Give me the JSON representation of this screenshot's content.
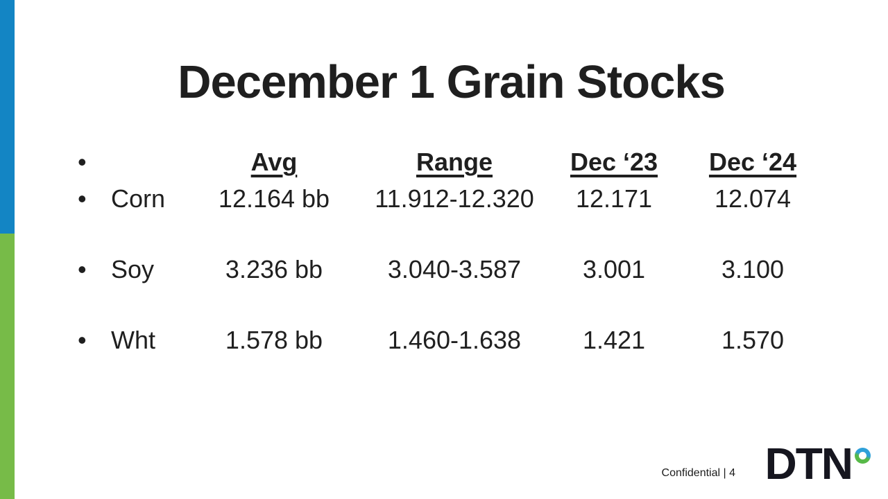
{
  "slide": {
    "title": "December 1 Grain Stocks",
    "bullet_char": "•",
    "table": {
      "headers": {
        "avg": "Avg",
        "range": "Range",
        "dec23": "Dec ‘23",
        "dec24": "Dec ‘24"
      },
      "rows": [
        {
          "label": "Corn",
          "avg": "12.164 bb",
          "range": "11.912-12.320",
          "dec23": "12.171",
          "dec24": "12.074"
        },
        {
          "label": "Soy",
          "avg": "3.236 bb",
          "range": "3.040-3.587",
          "dec23": "3.001",
          "dec24": "3.100"
        },
        {
          "label": "Wht",
          "avg": "1.578 bb",
          "range": "1.460-1.638",
          "dec23": "1.421",
          "dec24": "1.570"
        }
      ]
    },
    "footer": {
      "confidential": "Confidential | 4"
    },
    "logo": {
      "text": "DTN"
    },
    "colors": {
      "accent_blue": "#1385c4",
      "accent_green": "#77bb48",
      "logo_dot_blue": "#2ea0d9",
      "logo_dot_green": "#57b948",
      "text": "#1f1f1f"
    }
  },
  "chart_data": {
    "type": "table",
    "title": "December 1 Grain Stocks",
    "columns": [
      "",
      "Avg",
      "Range",
      "Dec ‘23",
      "Dec ‘24"
    ],
    "rows": [
      [
        "Corn",
        "12.164 bb",
        "11.912-12.320",
        "12.171",
        "12.074"
      ],
      [
        "Soy",
        "3.236 bb",
        "3.040-3.587",
        "3.001",
        "3.100"
      ],
      [
        "Wht",
        "1.578 bb",
        "1.460-1.638",
        "1.421",
        "1.570"
      ]
    ]
  }
}
